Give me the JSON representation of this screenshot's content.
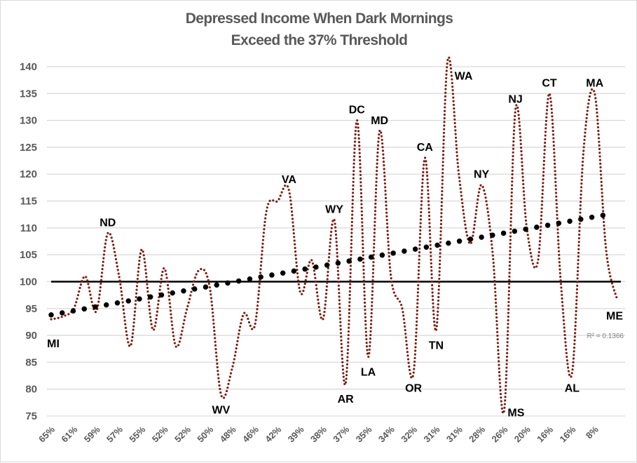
{
  "chart_data": {
    "type": "line",
    "title_lines": [
      "Depressed Income When Dark Mornings",
      "Exceed the 37% Threshold"
    ],
    "xlabel": "",
    "ylabel": "",
    "ylim": [
      75,
      140
    ],
    "y_ticks": [
      75,
      80,
      85,
      90,
      95,
      100,
      105,
      110,
      115,
      120,
      125,
      130,
      135,
      140
    ],
    "x_tick_labels": [
      "65%",
      "61%",
      "59%",
      "57%",
      "55%",
      "52%",
      "52%",
      "50%",
      "48%",
      "46%",
      "42%",
      "39%",
      "38%",
      "37%",
      "35%",
      "34%",
      "32%",
      "31%",
      "31%",
      "28%",
      "26%",
      "20%",
      "16%",
      "16%",
      "8%"
    ],
    "grid": true,
    "legend": "none",
    "reference_line": 100,
    "series": [
      {
        "style": "smoothed dotted line",
        "color": "#7a1f14",
        "values": [
          93,
          93.5,
          95,
          101,
          94.5,
          109,
          101,
          88,
          106,
          91,
          102.5,
          88,
          95,
          102,
          99,
          79,
          84,
          94,
          92,
          113,
          115,
          117,
          98,
          104,
          93,
          111.5,
          81,
          130,
          86,
          128,
          101,
          95,
          83,
          123,
          91,
          141,
          120,
          107,
          118,
          105,
          76,
          132,
          110,
          104,
          135,
          100,
          83,
          124,
          135,
          106,
          96.5
        ]
      }
    ],
    "point_labels": [
      {
        "index": 0,
        "text": "MI",
        "position": "below"
      },
      {
        "index": 5,
        "text": "ND",
        "position": "above"
      },
      {
        "index": 15,
        "text": "WV",
        "position": "below"
      },
      {
        "index": 21,
        "text": "VA",
        "position": "above"
      },
      {
        "index": 25,
        "text": "WY",
        "position": "above"
      },
      {
        "index": 26,
        "text": "AR",
        "position": "below"
      },
      {
        "index": 27,
        "text": "DC",
        "position": "above"
      },
      {
        "index": 28,
        "text": "LA",
        "position": "below"
      },
      {
        "index": 29,
        "text": "MD",
        "position": "above"
      },
      {
        "index": 32,
        "text": "OR",
        "position": "below"
      },
      {
        "index": 33,
        "text": "CA",
        "position": "above"
      },
      {
        "index": 34,
        "text": "TN",
        "position": "below"
      },
      {
        "index": 35,
        "text": "WA",
        "position": "right"
      },
      {
        "index": 38,
        "text": "NY",
        "position": "above"
      },
      {
        "index": 40,
        "text": "MS",
        "position": "below"
      },
      {
        "index": 41,
        "text": "NJ",
        "position": "above"
      },
      {
        "index": 44,
        "text": "CT",
        "position": "above"
      },
      {
        "index": 46,
        "text": "AL",
        "position": "below"
      },
      {
        "index": 48,
        "text": "MA",
        "position": "above"
      },
      {
        "index": 50,
        "text": "ME",
        "position": "below"
      }
    ],
    "trendline": {
      "type": "linear",
      "style": "round dots",
      "color": "#000000",
      "r_squared_label": "R² = 0.1366"
    }
  }
}
